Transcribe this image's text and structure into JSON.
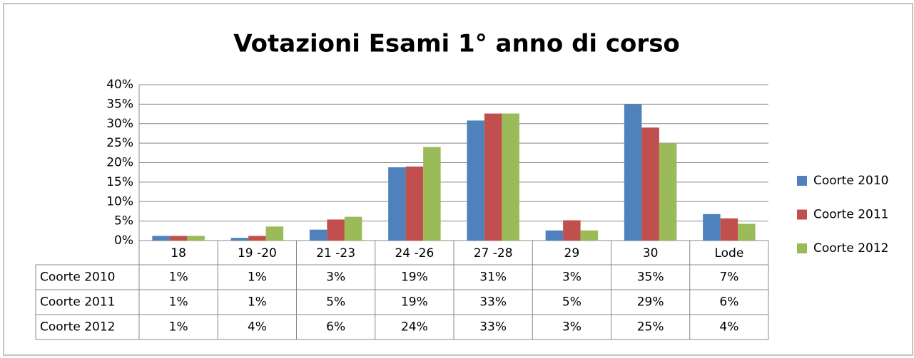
{
  "chart_data": {
    "type": "bar",
    "title": "Votazioni Esami 1° anno di corso",
    "categories": [
      "18",
      "19 -20",
      "21 -23",
      "24 -26",
      "27 -28",
      "29",
      "30",
      "Lode"
    ],
    "series": [
      {
        "name": "Coorte 2010",
        "color": "#4f81bd",
        "values": [
          1.2,
          0.7,
          2.8,
          18.8,
          30.8,
          2.6,
          35,
          6.8
        ],
        "value_labels": [
          "1%",
          "1%",
          "3%",
          "19%",
          "31%",
          "3%",
          "35%",
          "7%"
        ]
      },
      {
        "name": "Coorte 2011",
        "color": "#c0504d",
        "values": [
          1.2,
          1.2,
          5.4,
          19,
          32.6,
          5.2,
          29,
          5.7
        ],
        "value_labels": [
          "1%",
          "1%",
          "5%",
          "19%",
          "33%",
          "5%",
          "29%",
          "6%"
        ]
      },
      {
        "name": "Coorte 2012",
        "color": "#9bbb59",
        "values": [
          1.2,
          3.6,
          6.1,
          24,
          32.6,
          2.6,
          25,
          4.3
        ],
        "value_labels": [
          "1%",
          "4%",
          "6%",
          "24%",
          "33%",
          "3%",
          "25%",
          "4%"
        ]
      }
    ],
    "ylim": [
      0,
      40
    ],
    "yticks": [
      {
        "value": 0,
        "label": "0%"
      },
      {
        "value": 5,
        "label": "5%"
      },
      {
        "value": 10,
        "label": "10%"
      },
      {
        "value": 15,
        "label": "15%"
      },
      {
        "value": 20,
        "label": "20%"
      },
      {
        "value": 25,
        "label": "25%"
      },
      {
        "value": 30,
        "label": "30%"
      },
      {
        "value": 35,
        "label": "35%"
      },
      {
        "value": 40,
        "label": "40%"
      }
    ],
    "grid": true,
    "legend": "right"
  }
}
